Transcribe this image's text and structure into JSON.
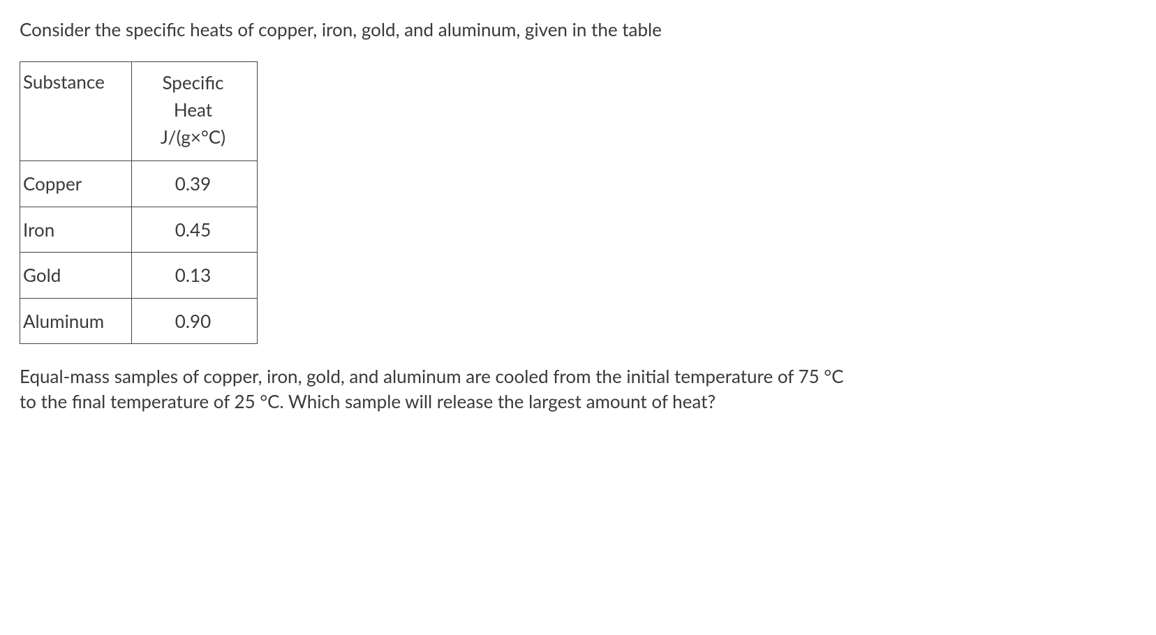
{
  "intro": "Consider the specific heats of copper, iron, gold, and aluminum, given in the table",
  "table": {
    "header": {
      "substance": "Substance",
      "heat_line1": "Specific",
      "heat_line2": "Heat",
      "heat_line3": "J/(g×°C)"
    },
    "rows": [
      {
        "substance": "Copper",
        "value": "0.39"
      },
      {
        "substance": "Iron",
        "value": "0.45"
      },
      {
        "substance": "Gold",
        "value": "0.13"
      },
      {
        "substance": "Aluminum",
        "value": "0.90"
      }
    ]
  },
  "question": "Equal-mass samples of copper, iron, gold, and aluminum are cooled from the initial temperature of 75 °C to the final temperature of 25 °C. Which sample will release the largest amount of heat?"
}
